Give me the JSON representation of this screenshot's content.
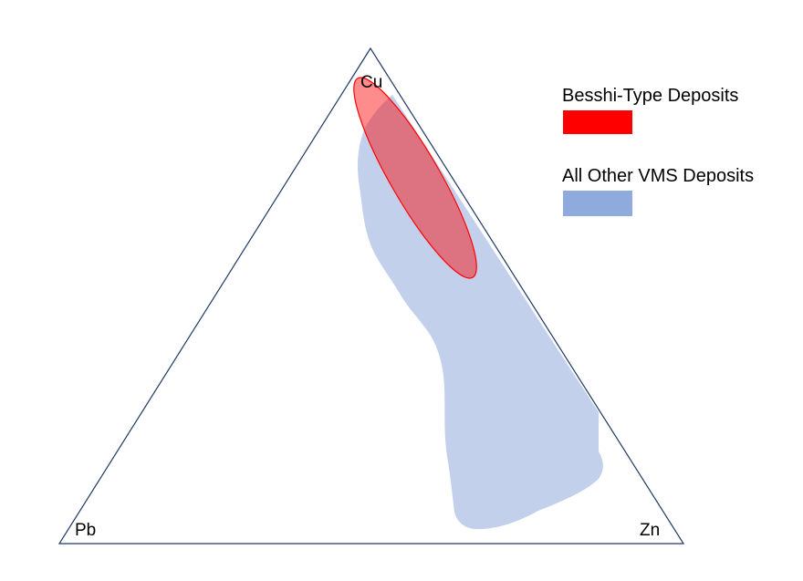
{
  "diagram": {
    "type": "ternary",
    "vertices": {
      "top": "Cu",
      "left": "Pb",
      "right": "Zn"
    }
  },
  "legend": {
    "items": [
      {
        "label": "Besshi-Type Deposits",
        "color": "#ff0000"
      },
      {
        "label": "All Other VMS Deposits",
        "color": "#8faadc"
      }
    ]
  },
  "fields": {
    "other_vms_fill": "#8faadc",
    "besshi_fill": "#ff0000",
    "triangle_stroke": "#1f3864"
  }
}
